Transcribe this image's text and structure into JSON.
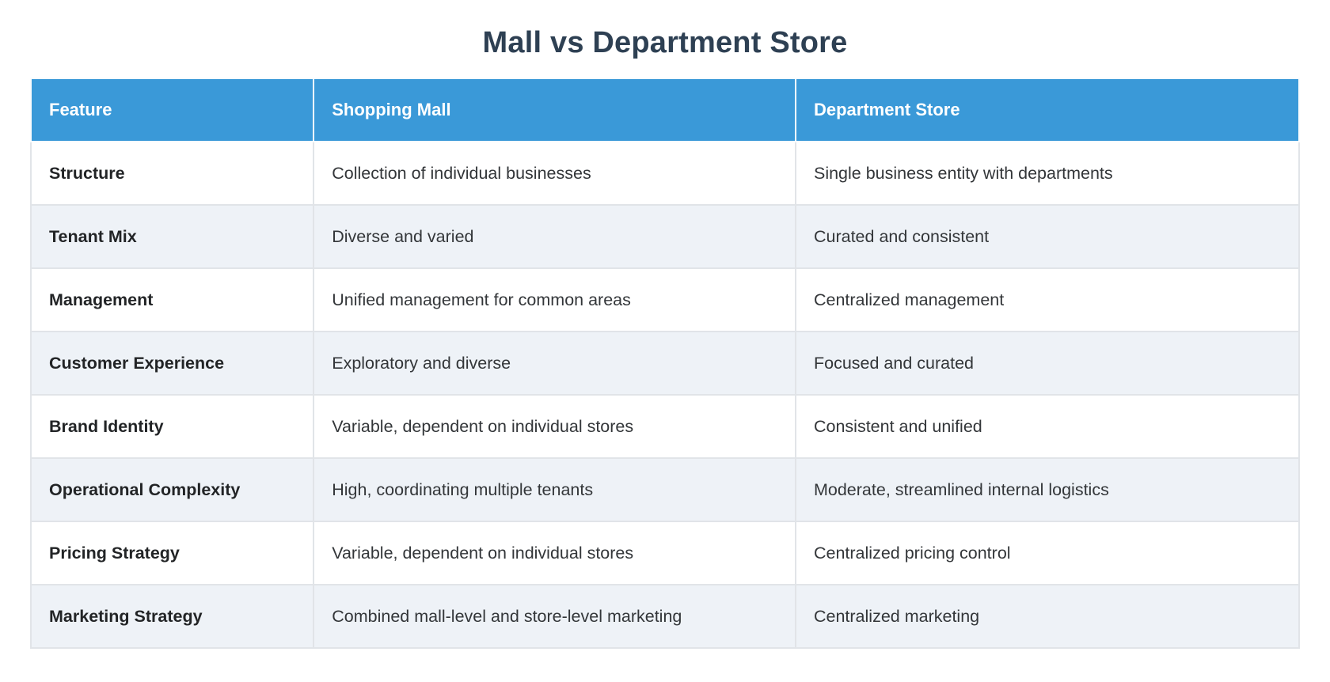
{
  "page": {
    "title": "Mall vs Department Store"
  },
  "colors": {
    "header_bg": "#3a99d8",
    "header_text": "#ffffff",
    "title_text": "#2e4053",
    "row_alt_bg": "#eef2f7",
    "row_bg": "#ffffff",
    "grid_border": "#e1e4e8",
    "body_text": "#333639"
  },
  "table": {
    "columns": {
      "feature": "Feature",
      "mall": "Shopping Mall",
      "dept": "Department Store"
    },
    "rows": [
      {
        "feature": "Structure",
        "mall": "Collection of individual businesses",
        "dept": "Single business entity with departments"
      },
      {
        "feature": "Tenant Mix",
        "mall": "Diverse and varied",
        "dept": "Curated and consistent"
      },
      {
        "feature": "Management",
        "mall": "Unified management for common areas",
        "dept": "Centralized management"
      },
      {
        "feature": "Customer Experience",
        "mall": "Exploratory and diverse",
        "dept": "Focused and curated"
      },
      {
        "feature": "Brand Identity",
        "mall": "Variable, dependent on individual stores",
        "dept": "Consistent and unified"
      },
      {
        "feature": "Operational Complexity",
        "mall": "High, coordinating multiple tenants",
        "dept": "Moderate, streamlined internal logistics"
      },
      {
        "feature": "Pricing Strategy",
        "mall": "Variable, dependent on individual stores",
        "dept": "Centralized pricing control"
      },
      {
        "feature": "Marketing Strategy",
        "mall": "Combined mall-level and store-level marketing",
        "dept": "Centralized marketing"
      }
    ]
  },
  "chart_data": {
    "type": "table",
    "title": "Mall vs Department Store",
    "columns": [
      "Feature",
      "Shopping Mall",
      "Department Store"
    ],
    "rows": [
      [
        "Structure",
        "Collection of individual businesses",
        "Single business entity with departments"
      ],
      [
        "Tenant Mix",
        "Diverse and varied",
        "Curated and consistent"
      ],
      [
        "Management",
        "Unified management for common areas",
        "Centralized management"
      ],
      [
        "Customer Experience",
        "Exploratory and diverse",
        "Focused and curated"
      ],
      [
        "Brand Identity",
        "Variable, dependent on individual stores",
        "Consistent and unified"
      ],
      [
        "Operational Complexity",
        "High, coordinating multiple tenants",
        "Moderate, streamlined internal logistics"
      ],
      [
        "Pricing Strategy",
        "Variable, dependent on individual stores",
        "Centralized pricing control"
      ],
      [
        "Marketing Strategy",
        "Combined mall-level and store-level marketing",
        "Centralized marketing"
      ]
    ],
    "layout": {
      "header_position": "top",
      "zebra_striping": true,
      "grid": true
    }
  }
}
